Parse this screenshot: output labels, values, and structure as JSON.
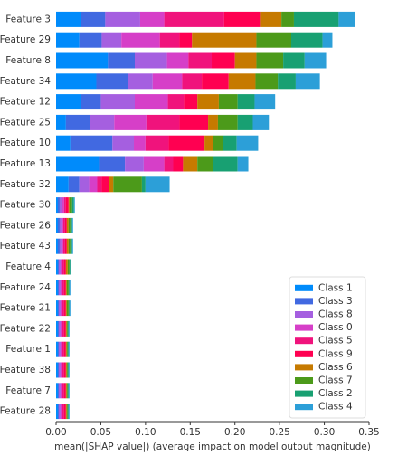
{
  "chart_data": {
    "type": "stacked-barh",
    "x_label": "mean(|SHAP value|) (average impact on model output magnitude)",
    "categories": [
      "Feature 3",
      "Feature 29",
      "Feature 8",
      "Feature 34",
      "Feature 12",
      "Feature 25",
      "Feature 10",
      "Feature 13",
      "Feature 32",
      "Feature 30",
      "Feature 26",
      "Feature 43",
      "Feature 4",
      "Feature 24",
      "Feature 21",
      "Feature 22",
      "Feature 1",
      "Feature 38",
      "Feature 7",
      "Feature 28"
    ],
    "series": [
      {
        "name": "Class 1",
        "color": "#008bfb",
        "values": [
          0.028,
          0.026,
          0.058,
          0.045,
          0.028,
          0.011,
          0.016,
          0.048,
          0.014,
          0.002,
          0.002,
          0.002,
          0.002,
          0.002,
          0.002,
          0.002,
          0.002,
          0.002,
          0.002,
          0.002
        ]
      },
      {
        "name": "Class 3",
        "color": "#4169e1",
        "values": [
          0.027,
          0.025,
          0.03,
          0.035,
          0.022,
          0.027,
          0.047,
          0.029,
          0.012,
          0.002,
          0.002,
          0.002,
          0.001,
          0.001,
          0.001,
          0.001,
          0.001,
          0.001,
          0.001,
          0.001
        ]
      },
      {
        "name": "Class 8",
        "color": "#a55fe0",
        "values": [
          0.039,
          0.022,
          0.036,
          0.028,
          0.038,
          0.027,
          0.024,
          0.021,
          0.011,
          0.003,
          0.002,
          0.002,
          0.002,
          0.002,
          0.002,
          0.002,
          0.002,
          0.002,
          0.002,
          0.002
        ]
      },
      {
        "name": "Class 0",
        "color": "#d63fc8",
        "values": [
          0.027,
          0.043,
          0.024,
          0.033,
          0.037,
          0.036,
          0.013,
          0.023,
          0.009,
          0.002,
          0.002,
          0.002,
          0.002,
          0.002,
          0.002,
          0.002,
          0.002,
          0.002,
          0.002,
          0.002
        ]
      },
      {
        "name": "Class 5",
        "color": "#f0137c",
        "values": [
          0.067,
          0.022,
          0.026,
          0.022,
          0.018,
          0.037,
          0.026,
          0.01,
          0.005,
          0.002,
          0.002,
          0.002,
          0.002,
          0.002,
          0.002,
          0.002,
          0.002,
          0.002,
          0.002,
          0.002
        ]
      },
      {
        "name": "Class 9",
        "color": "#ff0051",
        "values": [
          0.04,
          0.014,
          0.026,
          0.03,
          0.015,
          0.032,
          0.04,
          0.011,
          0.008,
          0.003,
          0.002,
          0.002,
          0.002,
          0.002,
          0.002,
          0.002,
          0.002,
          0.002,
          0.002,
          0.002
        ]
      },
      {
        "name": "Class 6",
        "color": "#c67a00",
        "values": [
          0.024,
          0.072,
          0.024,
          0.03,
          0.024,
          0.011,
          0.009,
          0.016,
          0.005,
          0.001,
          0.002,
          0.002,
          0.002,
          0.001,
          0.001,
          0.001,
          0.001,
          0.001,
          0.001,
          0.001
        ]
      },
      {
        "name": "Class 7",
        "color": "#4c9a1a",
        "values": [
          0.014,
          0.039,
          0.03,
          0.025,
          0.021,
          0.022,
          0.012,
          0.017,
          0.032,
          0.003,
          0.002,
          0.002,
          0.002,
          0.002,
          0.002,
          0.001,
          0.001,
          0.001,
          0.001,
          0.001
        ]
      },
      {
        "name": "Class 2",
        "color": "#18a072",
        "values": [
          0.05,
          0.035,
          0.024,
          0.02,
          0.019,
          0.017,
          0.015,
          0.028,
          0.004,
          0.002,
          0.002,
          0.002,
          0.001,
          0.001,
          0.001,
          0.001,
          0.001,
          0.001,
          0.001,
          0.001
        ]
      },
      {
        "name": "Class 4",
        "color": "#2c9fd8",
        "values": [
          0.018,
          0.011,
          0.024,
          0.027,
          0.023,
          0.018,
          0.024,
          0.012,
          0.027,
          0.001,
          0.001,
          0.001,
          0.001,
          0.001,
          0.001,
          0.001,
          0.001,
          0.001,
          0.001,
          0.001
        ]
      }
    ],
    "xlim": [
      0,
      0.35
    ],
    "xticks": [
      {
        "value": 0,
        "label": "0.00"
      },
      {
        "value": 0.05,
        "label": "0.05"
      },
      {
        "value": 0.1,
        "label": "0.10"
      },
      {
        "value": 0.15,
        "label": "0.15"
      },
      {
        "value": 0.2,
        "label": "0.20"
      },
      {
        "value": 0.25,
        "label": "0.25"
      },
      {
        "value": 0.3,
        "label": "0.30"
      },
      {
        "value": 0.35,
        "label": "0.35"
      }
    ],
    "legend": "lower right"
  }
}
